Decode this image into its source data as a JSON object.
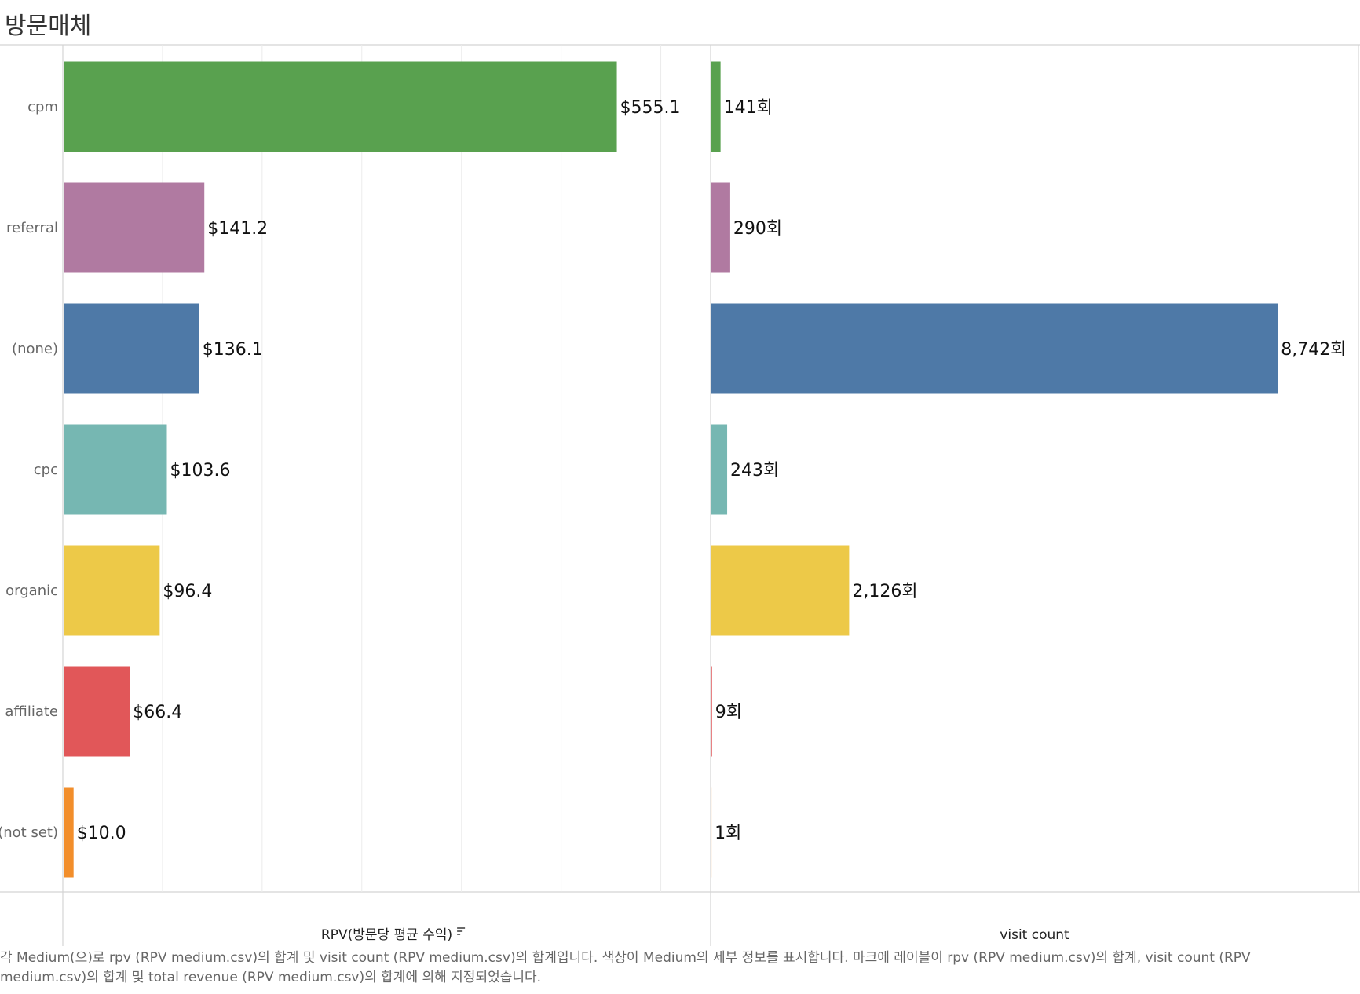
{
  "title": "방문매체",
  "caption": "각 Medium(으)로 rpv (RPV medium.csv)의 합계 및 visit count (RPV medium.csv)의 합계입니다. 색상이 Medium의 세부 정보를 표시합니다. 마크에 레이블이 rpv (RPV medium.csv)의 합계, visit count (RPV medium.csv)의 합계 및 total revenue (RPV medium.csv)의 합계에 의해 지정되었습니다.",
  "chart_data": {
    "type": "bar",
    "orientation": "horizontal",
    "categories": [
      "cpm",
      "referral",
      "(none)",
      "cpc",
      "organic",
      "affiliate",
      "(not set)"
    ],
    "colors": [
      "#59a14f",
      "#b07aa1",
      "#4e79a7",
      "#76b7b2",
      "#edc948",
      "#e15759",
      "#f28e2b"
    ],
    "panels": [
      {
        "name": "RPV(방문당 평균 수익)",
        "values": [
          555.1,
          141.2,
          136.1,
          103.6,
          96.4,
          66.4,
          10.0
        ],
        "labels": [
          "$555.1",
          "$141.2",
          "$136.1",
          "$103.6",
          "$96.4",
          "$66.4",
          "$10.0"
        ],
        "xlim": [
          0,
          650
        ],
        "grid_step": 100,
        "sort_icon": true
      },
      {
        "name": "visit count",
        "values": [
          141,
          290,
          8742,
          243,
          2126,
          9,
          1
        ],
        "labels": [
          "141회",
          "290회",
          "8,742회",
          "243회",
          "2,126회",
          "9회",
          "1회"
        ],
        "xlim": [
          0,
          10000
        ],
        "grid_step": 10000,
        "sort_icon": false
      }
    ],
    "grid": true,
    "legend": "none"
  }
}
